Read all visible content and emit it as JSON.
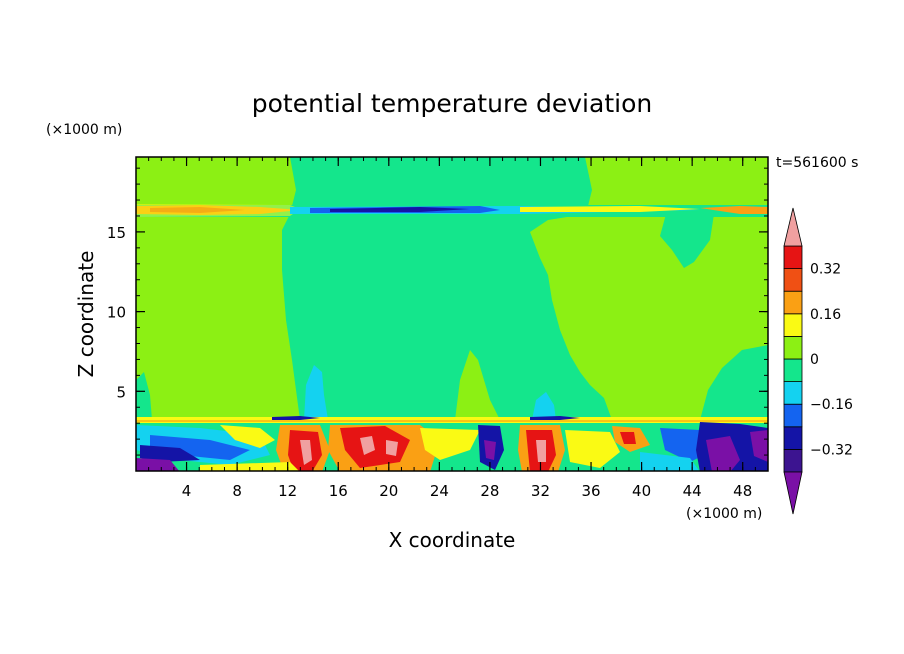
{
  "chart_data": {
    "type": "heatmap",
    "title": "potential temperature deviation",
    "xlabel": "X coordinate",
    "ylabel": "Z coordinate",
    "x_unit": "(×1000 m)",
    "y_unit": "(×1000 m)",
    "time_label": "t=561600 s",
    "xlim": [
      0,
      50
    ],
    "ylim": [
      0,
      19.7
    ],
    "x_ticks": [
      4,
      8,
      12,
      16,
      20,
      24,
      28,
      32,
      36,
      40,
      44,
      48
    ],
    "y_ticks": [
      5,
      10,
      15
    ],
    "colorbar": {
      "levels": [
        -0.4,
        -0.32,
        -0.24,
        -0.16,
        -0.08,
        0,
        0.08,
        0.16,
        0.24,
        0.32,
        0.4
      ],
      "tick_values": [
        0.32,
        0.16,
        0,
        -0.16,
        -0.32
      ],
      "tick_labels": [
        "0.32",
        "0.16",
        "0",
        "−0.16",
        "−0.32"
      ],
      "colors": [
        "#7a10a6",
        "#3c1490",
        "#1414a6",
        "#1464f0",
        "#14d2f0",
        "#14e68c",
        "#8cf014",
        "#fafa14",
        "#faa014",
        "#f05014",
        "#e61414",
        "#f0a0a0"
      ],
      "extend": "both"
    },
    "features": [
      {
        "name": "upper_band",
        "x_range": [
          0,
          50
        ],
        "z_range": [
          16.2,
          17.1
        ],
        "description_value": "mixed -0.4 to +0.32"
      },
      {
        "name": "background",
        "value_range": [
          0,
          0.08
        ]
      },
      {
        "name": "boundary_layer",
        "z_range": [
          0,
          3.6
        ],
        "value_range": [
          -0.4,
          0.4
        ]
      }
    ]
  }
}
